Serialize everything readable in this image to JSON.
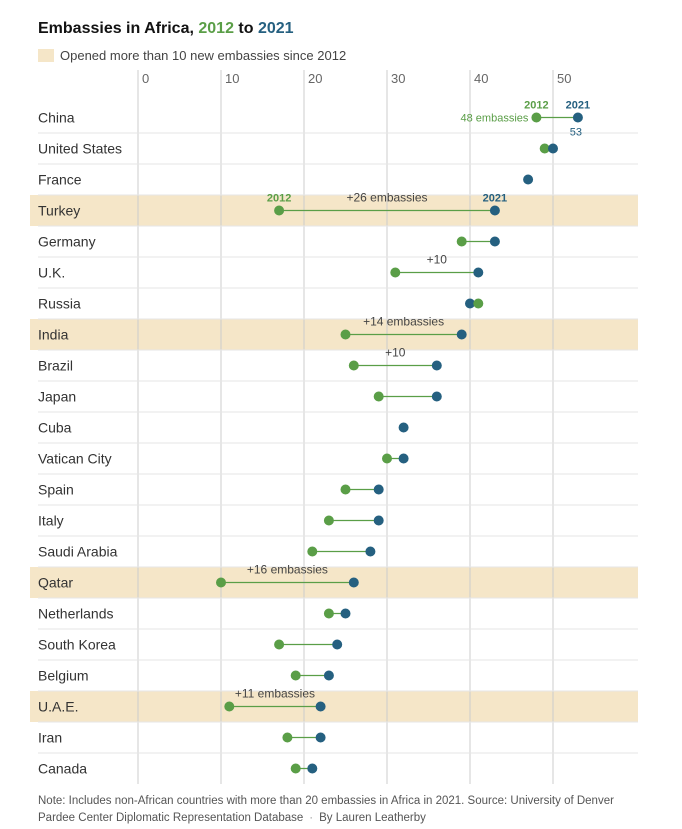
{
  "title": {
    "prefix": "Embassies in Africa,",
    "year_start": "2012",
    "connector": "to",
    "year_end": "2021"
  },
  "legend": {
    "label": "Opened more than 10 new embassies since 2012"
  },
  "note": {
    "text": "Note: Includes non-African countries with more than 20 embassies in Africa in 2021. Source: University of Denver Pardee Center Diplomatic Representation Database",
    "byline": "By Lauren Leatherby"
  },
  "colors": {
    "y2012": "#5a9e47",
    "y2021": "#256080",
    "highlight": "#f5e6c8",
    "grid": "#cccccc",
    "row_divider": "#e6e6e6"
  },
  "chart_data": {
    "type": "scatter",
    "subtype": "dumbbell",
    "xlim": [
      0,
      58
    ],
    "xticks": [
      0,
      10,
      20,
      30,
      40,
      50
    ],
    "grid": true,
    "series": [
      {
        "name": "2012"
      },
      {
        "name": "2021"
      }
    ],
    "rows": [
      {
        "country": "China",
        "y2012": 48,
        "y2021": 53,
        "highlight": false,
        "labels": [
          {
            "text": "2012",
            "at": 48,
            "color": "y2012",
            "pos": "above",
            "bold": true
          },
          {
            "text": "2021",
            "at": 53,
            "color": "y2021",
            "pos": "above",
            "bold": true
          },
          {
            "text": "48 embassies",
            "at": 48,
            "color": "y2012",
            "pos": "left"
          },
          {
            "text": "53",
            "at": 53,
            "color": "y2021",
            "pos": "below"
          }
        ]
      },
      {
        "country": "United States",
        "y2012": 49,
        "y2021": 50,
        "highlight": false
      },
      {
        "country": "France",
        "y2012": null,
        "y2021": 47,
        "highlight": false
      },
      {
        "country": "Turkey",
        "y2012": 17,
        "y2021": 43,
        "highlight": true,
        "labels": [
          {
            "text": "2012",
            "at": 17,
            "color": "y2012",
            "pos": "above",
            "bold": true
          },
          {
            "text": "2021",
            "at": 43,
            "color": "y2021",
            "pos": "above",
            "bold": true
          },
          {
            "text": "+26 embassies",
            "at": 30,
            "color": "text",
            "pos": "above"
          }
        ]
      },
      {
        "country": "Germany",
        "y2012": 39,
        "y2021": 43,
        "highlight": false
      },
      {
        "country": "U.K.",
        "y2012": 31,
        "y2021": 41,
        "highlight": false,
        "labels": [
          {
            "text": "+10",
            "at": 36,
            "color": "text",
            "pos": "above"
          }
        ]
      },
      {
        "country": "Russia",
        "y2012": 41,
        "y2021": 40,
        "highlight": false
      },
      {
        "country": "India",
        "y2012": 25,
        "y2021": 39,
        "highlight": true,
        "labels": [
          {
            "text": "+14 embassies",
            "at": 32,
            "color": "text",
            "pos": "above"
          }
        ]
      },
      {
        "country": "Brazil",
        "y2012": 26,
        "y2021": 36,
        "highlight": false,
        "labels": [
          {
            "text": "+10",
            "at": 31,
            "color": "text",
            "pos": "above"
          }
        ]
      },
      {
        "country": "Japan",
        "y2012": 29,
        "y2021": 36,
        "highlight": false
      },
      {
        "country": "Cuba",
        "y2012": null,
        "y2021": 32,
        "highlight": false
      },
      {
        "country": "Vatican City",
        "y2012": 30,
        "y2021": 32,
        "highlight": false
      },
      {
        "country": "Spain",
        "y2012": 25,
        "y2021": 29,
        "highlight": false
      },
      {
        "country": "Italy",
        "y2012": 23,
        "y2021": 29,
        "highlight": false
      },
      {
        "country": "Saudi Arabia",
        "y2012": 21,
        "y2021": 28,
        "highlight": false
      },
      {
        "country": "Qatar",
        "y2012": 10,
        "y2021": 26,
        "highlight": true,
        "labels": [
          {
            "text": "+16 embassies",
            "at": 18,
            "color": "text",
            "pos": "above"
          }
        ]
      },
      {
        "country": "Netherlands",
        "y2012": 23,
        "y2021": 25,
        "highlight": false
      },
      {
        "country": "South Korea",
        "y2012": 17,
        "y2021": 24,
        "highlight": false
      },
      {
        "country": "Belgium",
        "y2012": 19,
        "y2021": 23,
        "highlight": false
      },
      {
        "country": "U.A.E.",
        "y2012": 11,
        "y2021": 22,
        "highlight": true,
        "labels": [
          {
            "text": "+11 embassies",
            "at": 16.5,
            "color": "text",
            "pos": "above"
          }
        ]
      },
      {
        "country": "Iran",
        "y2012": 18,
        "y2021": 22,
        "highlight": false
      },
      {
        "country": "Canada",
        "y2012": 19,
        "y2021": 21,
        "highlight": false
      }
    ]
  }
}
